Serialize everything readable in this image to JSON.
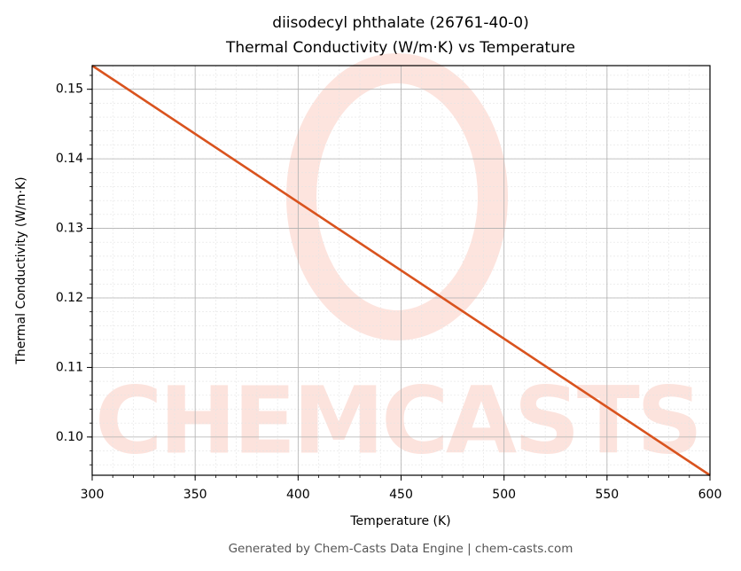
{
  "chart_data": {
    "type": "line",
    "title": [
      "diisodecyl phthalate (26761-40-0)",
      "Thermal Conductivity (W/m·K) vs Temperature"
    ],
    "x_label": "Temperature (K)",
    "y_label": "Thermal Conductivity (W/m·K)",
    "footer": "Generated by Chem-Casts Data Engine | chem-casts.com",
    "watermark": "CHEMCASTS",
    "x": [
      300,
      600
    ],
    "series": [
      {
        "name": "Thermal Conductivity",
        "color": "#d9531e",
        "values": [
          0.1534,
          0.0945
        ]
      }
    ],
    "xlim": [
      300,
      600
    ],
    "xticks": [
      300,
      350,
      400,
      450,
      500,
      550,
      600
    ],
    "ylim": [
      0.0945,
      0.1534
    ],
    "yticks": [
      {
        "value": 0.1,
        "label": "0.10"
      },
      {
        "value": 0.11,
        "label": "0.11"
      },
      {
        "value": 0.12,
        "label": "0.12"
      },
      {
        "value": 0.13,
        "label": "0.13"
      },
      {
        "value": 0.14,
        "label": "0.14"
      },
      {
        "value": 0.15,
        "label": "0.15"
      }
    ],
    "grid": true,
    "legend": false
  }
}
